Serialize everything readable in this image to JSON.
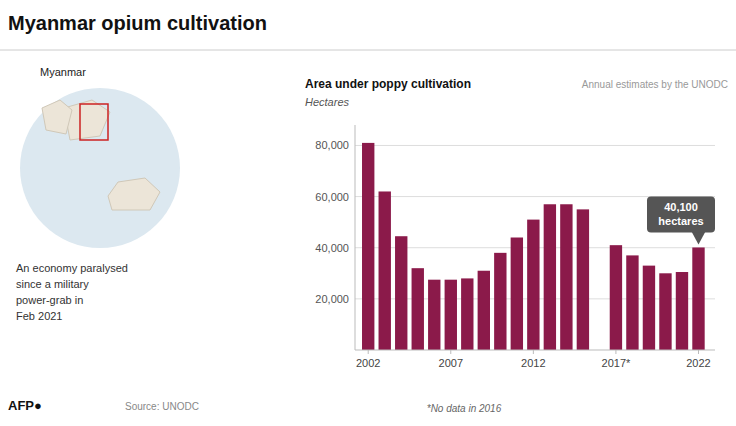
{
  "chart_data": {
    "type": "bar",
    "title": "Myanmar opium cultivation",
    "subtitle": "Area under poppy cultivation",
    "ylabel": "Hectares",
    "annotations": [
      {
        "text": "Annual estimates by the UNODC"
      },
      {
        "text": "40,100\nhectares",
        "x": 2022
      },
      {
        "text": "*No data in 2016"
      },
      {
        "text": "Myanmar"
      },
      {
        "text": "An economy paralysed\nsince a military\npower-grab in\nFeb 2021"
      },
      {
        "text": "AFP●"
      },
      {
        "text": "Source: UNODC"
      }
    ],
    "x": [
      2002,
      2003,
      2004,
      2005,
      2006,
      2007,
      2008,
      2009,
      2010,
      2011,
      2012,
      2013,
      2014,
      2015,
      2017,
      2018,
      2019,
      2020,
      2021,
      2022
    ],
    "values": [
      81000,
      62000,
      44500,
      32000,
      27500,
      27500,
      28000,
      31000,
      38000,
      44000,
      51000,
      57000,
      57000,
      55000,
      41000,
      37000,
      33000,
      30000,
      30500,
      40100
    ],
    "color": "#8B1A4A",
    "xlim": [
      2001.2,
      2023.0
    ],
    "xticks": [
      2002,
      2007,
      2012,
      {
        "value": 2017,
        "label": "2017*"
      },
      2022
    ],
    "ylim": [
      0,
      88000
    ],
    "yticks": [
      {
        "value": 20000,
        "label": "20,000"
      },
      {
        "value": 40000,
        "label": "40,000"
      },
      {
        "value": 60000,
        "label": "60,000"
      },
      {
        "value": 80000,
        "label": "80,000"
      }
    ],
    "grid": true
  }
}
